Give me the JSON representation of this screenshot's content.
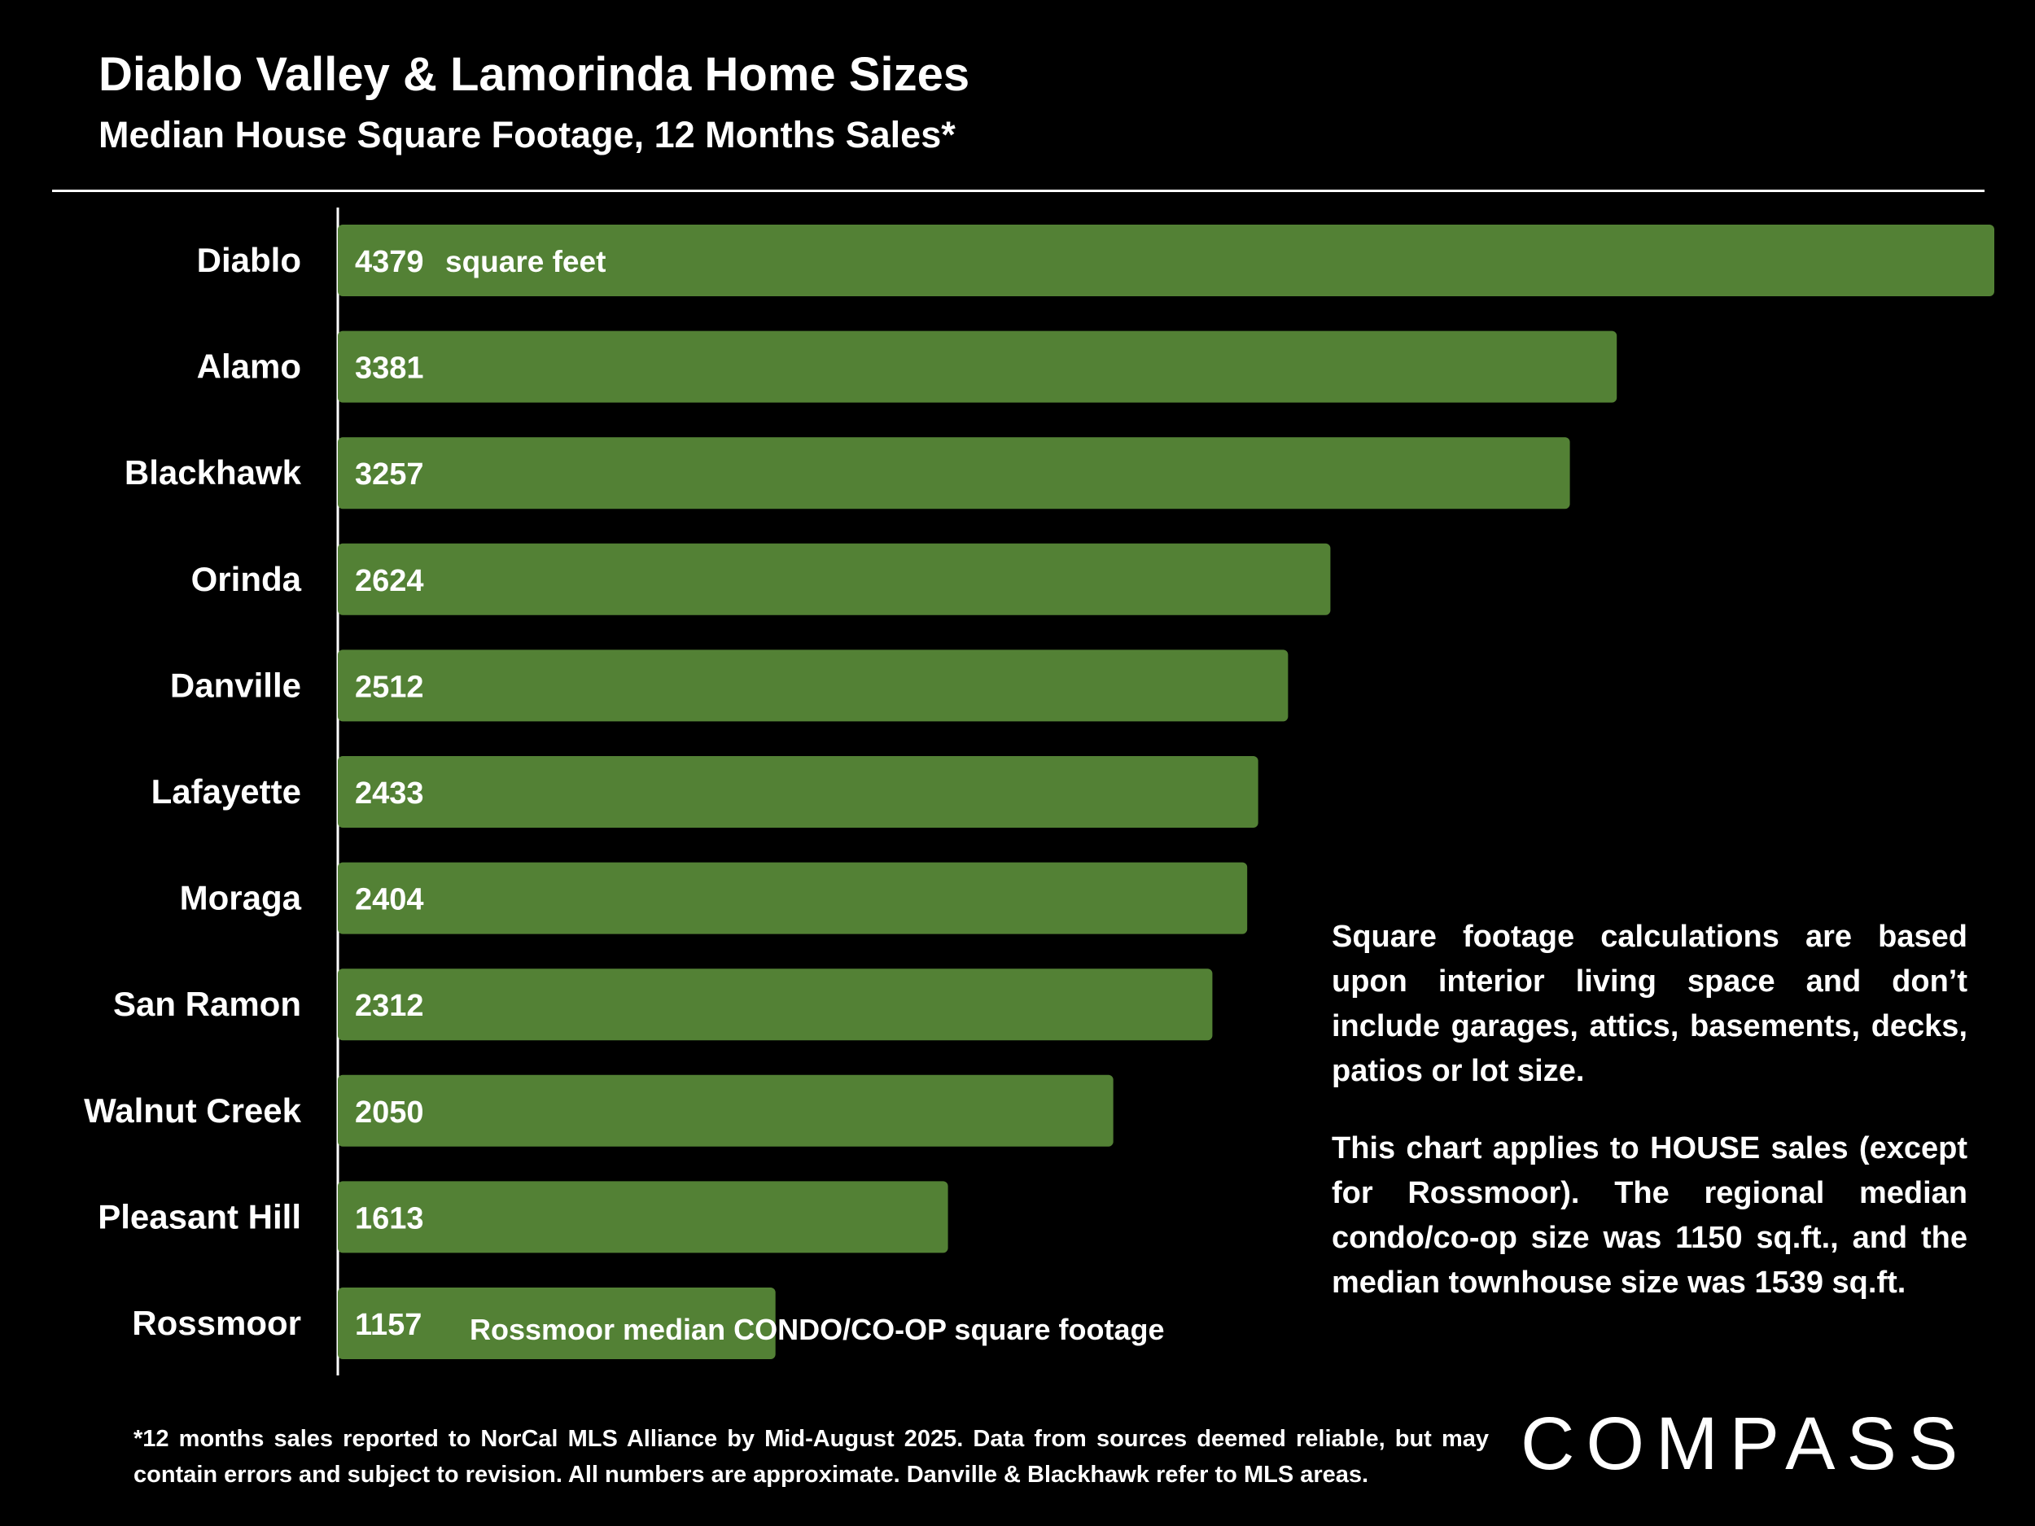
{
  "header": {
    "title": "Diablo Valley & Lamorinda Home Sizes",
    "subtitle": "Median House Square Footage, 12 Months Sales*"
  },
  "chart_data": {
    "type": "bar",
    "orientation": "horizontal",
    "title": "Diablo Valley & Lamorinda Home Sizes",
    "subtitle": "Median House Square Footage, 12 Months Sales*",
    "categories": [
      "Diablo",
      "Alamo",
      "Blackhawk",
      "Orinda",
      "Danville",
      "Lafayette",
      "Moraga",
      "San Ramon",
      "Walnut Creek",
      "Pleasant Hill",
      "Rossmoor"
    ],
    "values": [
      4379,
      3381,
      3257,
      2624,
      2512,
      2433,
      2404,
      2312,
      2050,
      1613,
      1157
    ],
    "unit_label": "square feet",
    "annotations": [
      {
        "category": "Rossmoor",
        "text": "Rossmoor median CONDO/CO-OP square footage"
      }
    ],
    "xlim": [
      0,
      4379
    ],
    "grid": false,
    "bar_color": "#538135"
  },
  "notes": {
    "note1": "Square footage calculations are based upon interior living space and don’t include garages, attics, basements, decks, patios or lot size.",
    "note2": "This chart applies to HOUSE sales (except for Rossmoor). The regional median condo/co-op size was 1150 sq.ft., and the median townhouse size was 1539 sq.ft."
  },
  "footnote": "*12 months sales reported to NorCal MLS Alliance by Mid-August 2025. Data from sources deemed reliable, but may contain errors and subject to revision. All numbers are approximate. Danville & Blackhawk refer to MLS areas.",
  "logo": {
    "text": "COMPASS"
  }
}
